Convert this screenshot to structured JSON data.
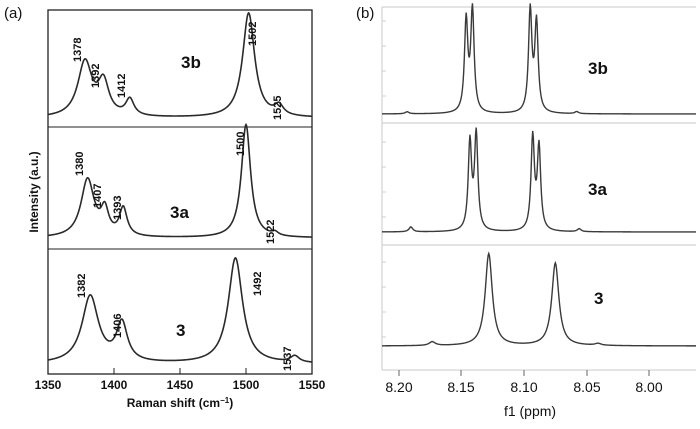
{
  "chart_data": [
    {
      "type": "line",
      "panel_label": "(a)",
      "xlabel": "Raman shift (cm",
      "xlabel_sup": "−1",
      "xlabel_close": ")",
      "ylabel": "Intensity (a.u.)",
      "xlim": [
        1350,
        1550
      ],
      "x_ticks": [
        "1350",
        "1400",
        "1450",
        "1500",
        "1550"
      ],
      "grid": false,
      "series": [
        {
          "name": "3b",
          "peaks": [
            {
              "x": 1378,
              "h": 1.0,
              "w": 6.5
            },
            {
              "x": 1392,
              "h": 0.6,
              "w": 5.0
            },
            {
              "x": 1412,
              "h": 0.3,
              "w": 3.8
            },
            {
              "x": 1502,
              "h": 1.9,
              "w": 5.5
            },
            {
              "x": 1525,
              "h": 0.18,
              "w": 4.0
            }
          ],
          "annotations": [
            "1378",
            "1392",
            "1412",
            "1502",
            "1525"
          ]
        },
        {
          "name": "3a",
          "peaks": [
            {
              "x": 1380,
              "h": 1.0,
              "w": 6.0
            },
            {
              "x": 1393,
              "h": 0.42,
              "w": 3.5
            },
            {
              "x": 1407,
              "h": 0.48,
              "w": 3.5
            },
            {
              "x": 1500,
              "h": 1.95,
              "w": 4.2
            },
            {
              "x": 1522,
              "h": 0.06,
              "w": 3.0
            }
          ],
          "annotations": [
            "1380",
            "1407",
            "1393",
            "1500",
            "1522"
          ]
        },
        {
          "name": "3",
          "peaks": [
            {
              "x": 1382,
              "h": 1.05,
              "w": 7.5
            },
            {
              "x": 1406,
              "h": 0.6,
              "w": 5.0
            },
            {
              "x": 1492,
              "h": 1.65,
              "w": 6.5
            },
            {
              "x": 1537,
              "h": 0.1,
              "w": 4.0
            }
          ],
          "annotations": [
            "1382",
            "1406",
            "1492",
            "1537"
          ]
        }
      ]
    },
    {
      "type": "line",
      "panel_label": "(b)",
      "xlabel": "f1 (ppm)",
      "xlim": [
        8.225,
        7.975
      ],
      "x_ticks": [
        "8.20",
        "8.15",
        "8.10",
        "8.05",
        "8.00"
      ],
      "grid": false,
      "series": [
        {
          "name": "3b",
          "peaks": [
            {
              "x": 8.158,
              "h": 0.9,
              "w": 0.0016
            },
            {
              "x": 8.153,
              "h": 1.0,
              "w": 0.0016
            },
            {
              "x": 8.107,
              "h": 1.0,
              "w": 0.0016
            },
            {
              "x": 8.102,
              "h": 0.88,
              "w": 0.0016
            },
            {
              "x": 8.205,
              "h": 0.02,
              "w": 0.0018
            },
            {
              "x": 8.07,
              "h": 0.02,
              "w": 0.0018
            }
          ]
        },
        {
          "name": "3a",
          "peaks": [
            {
              "x": 8.155,
              "h": 0.9,
              "w": 0.0016
            },
            {
              "x": 8.15,
              "h": 0.98,
              "w": 0.0016
            },
            {
              "x": 8.105,
              "h": 0.95,
              "w": 0.0016
            },
            {
              "x": 8.1,
              "h": 0.85,
              "w": 0.0016
            },
            {
              "x": 8.202,
              "h": 0.05,
              "w": 0.0018
            },
            {
              "x": 8.068,
              "h": 0.03,
              "w": 0.0018
            }
          ]
        },
        {
          "name": "3",
          "peaks": [
            {
              "x": 8.14,
              "h": 0.98,
              "w": 0.0034
            },
            {
              "x": 8.087,
              "h": 0.88,
              "w": 0.0034
            },
            {
              "x": 8.185,
              "h": 0.04,
              "w": 0.003
            },
            {
              "x": 8.053,
              "h": 0.02,
              "w": 0.003
            }
          ]
        }
      ]
    }
  ]
}
